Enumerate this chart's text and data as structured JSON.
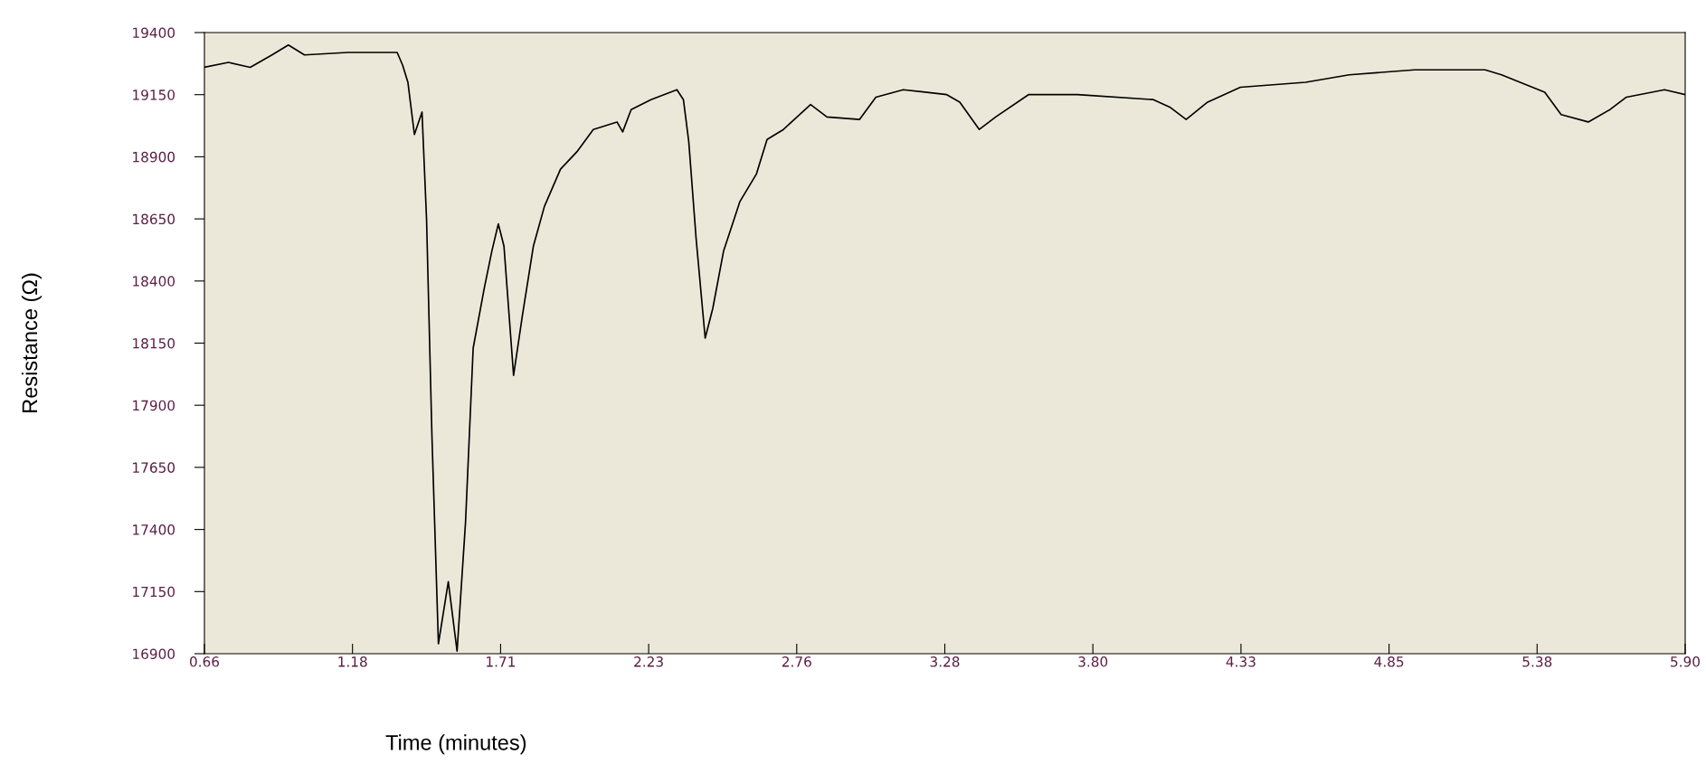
{
  "chart_data": {
    "type": "line",
    "xlabel": "Time (minutes)",
    "ylabel": "Resistance (Ω)",
    "xlim": [
      0.66,
      5.9
    ],
    "ylim": [
      16900,
      19400
    ],
    "xticks": [
      {
        "value": 0.66,
        "label": "0.66"
      },
      {
        "value": 1.184,
        "label": "1.18"
      },
      {
        "value": 1.708,
        "label": "1.71"
      },
      {
        "value": 2.232,
        "label": "2.23"
      },
      {
        "value": 2.756,
        "label": "2.76"
      },
      {
        "value": 3.28,
        "label": "3.28"
      },
      {
        "value": 3.804,
        "label": "3.80"
      },
      {
        "value": 4.328,
        "label": "4.33"
      },
      {
        "value": 4.852,
        "label": "4.85"
      },
      {
        "value": 5.376,
        "label": "5.38"
      },
      {
        "value": 5.9,
        "label": "5.90"
      }
    ],
    "yticks": [
      16900,
      17150,
      17400,
      17650,
      17900,
      18150,
      18400,
      18650,
      18900,
      19150,
      19400
    ],
    "grid": false,
    "marker": "none",
    "line_style": "solid",
    "series": [
      {
        "color": "#000000",
        "x": [
          0.66,
          0.745,
          0.822,
          0.899,
          0.957,
          1.014,
          1.168,
          1.342,
          1.361,
          1.38,
          1.403,
          1.43,
          1.446,
          1.465,
          1.488,
          1.523,
          1.554,
          1.584,
          1.611,
          1.65,
          1.677,
          1.7,
          1.72,
          1.754,
          1.785,
          1.824,
          1.863,
          1.92,
          1.978,
          2.036,
          2.12,
          2.14,
          2.17,
          2.24,
          2.332,
          2.355,
          2.374,
          2.4,
          2.432,
          2.459,
          2.497,
          2.555,
          2.613,
          2.651,
          2.709,
          2.805,
          2.863,
          2.978,
          3.036,
          3.133,
          3.287,
          3.333,
          3.402,
          3.46,
          3.576,
          3.749,
          4.018,
          4.076,
          4.134,
          4.21,
          4.326,
          4.557,
          4.711,
          4.942,
          5.192,
          5.25,
          5.403,
          5.461,
          5.557,
          5.634,
          5.692,
          5.827,
          5.9
        ],
        "values": [
          19260,
          19280,
          19260,
          19310,
          19350,
          19310,
          19320,
          19320,
          19270,
          19200,
          18990,
          19080,
          18650,
          17780,
          16940,
          17190,
          16910,
          17430,
          18130,
          18370,
          18520,
          18630,
          18540,
          18020,
          18260,
          18540,
          18700,
          18850,
          18920,
          19010,
          19040,
          19000,
          19090,
          19130,
          19170,
          19130,
          18960,
          18570,
          18170,
          18290,
          18520,
          18720,
          18830,
          18970,
          19010,
          19110,
          19060,
          19050,
          19140,
          19170,
          19150,
          19120,
          19010,
          19060,
          19150,
          19150,
          19130,
          19100,
          19050,
          19120,
          19180,
          19200,
          19230,
          19250,
          19250,
          19230,
          19160,
          19070,
          19040,
          19090,
          19140,
          19170,
          19150
        ]
      }
    ]
  }
}
